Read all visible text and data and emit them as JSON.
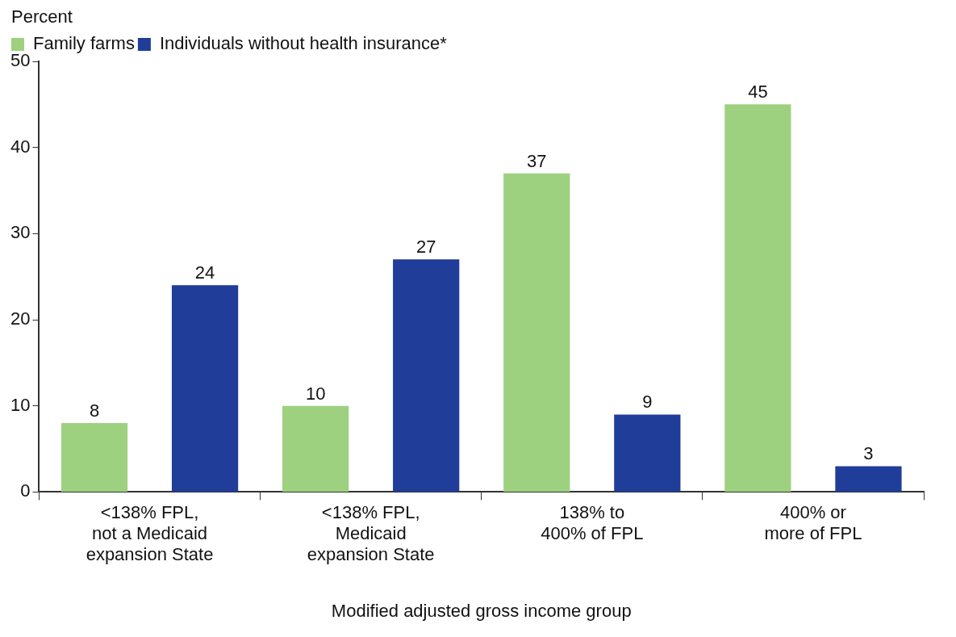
{
  "chart_data": {
    "type": "bar",
    "xlabel": "Modified adjusted gross income group",
    "ylabel": "Percent",
    "categories": [
      "<138% FPL,\nnot a Medicaid\nexpansion State",
      "<138% FPL,\nMedicaid\nexpansion State",
      "138% to\n400% of FPL",
      "400% or\nmore of FPL"
    ],
    "series": [
      {
        "name": "Family farms",
        "color": "#9dd17f",
        "values": [
          8,
          10,
          37,
          45
        ]
      },
      {
        "name": "Individuals without health insurance*",
        "color": "#1f3d99",
        "values": [
          24,
          27,
          9,
          3
        ]
      }
    ],
    "ylim": [
      0,
      50
    ],
    "yticks": [
      0,
      10,
      20,
      30,
      40,
      50
    ],
    "grid": false,
    "legend": "top left",
    "data_labels": true
  }
}
